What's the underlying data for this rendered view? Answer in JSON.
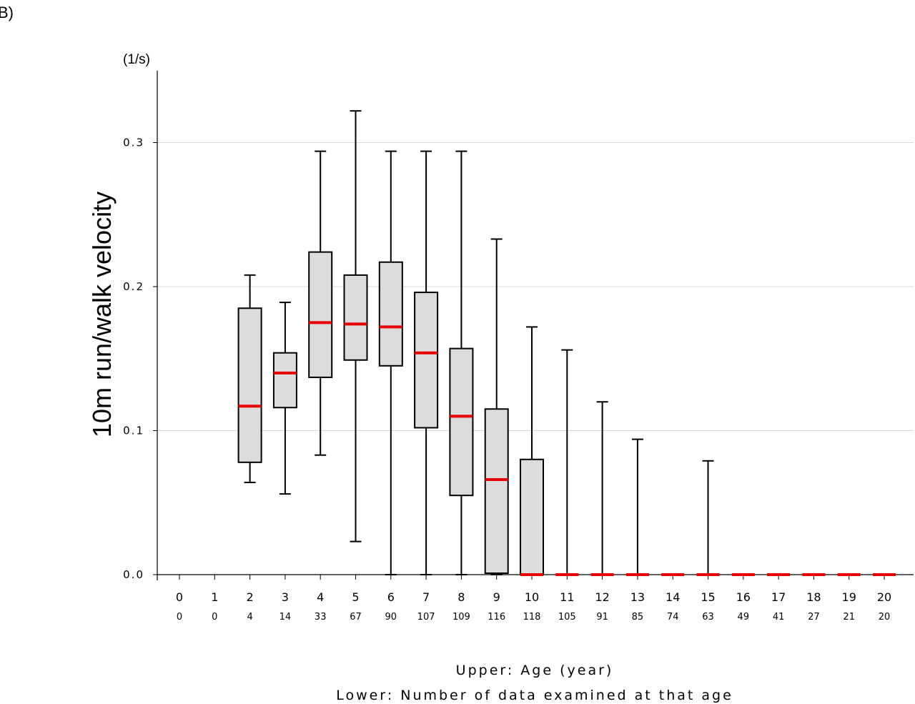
{
  "panel_label": "B)",
  "chart_data": {
    "type": "box",
    "unit": "(1/s)",
    "ylabel": "10m run/walk velocity",
    "xlabel_upper": "Upper: Age (year)",
    "xlabel_lower": "Lower: Number of data examined at that age",
    "ylim": [
      0,
      0.35
    ],
    "yticks": [
      {
        "value": 0.0,
        "label": "0.0"
      },
      {
        "value": 0.1,
        "label": "0.1"
      },
      {
        "value": 0.2,
        "label": "0.2"
      },
      {
        "value": 0.3,
        "label": "0.3"
      }
    ],
    "grid": "horizontal",
    "colors": {
      "box_fill": "#dcdcdc",
      "box_stroke": "#000000",
      "median": "#e60000",
      "grid": "#d9d9d9"
    },
    "categories": [
      {
        "age": "0",
        "n": "0",
        "box": null
      },
      {
        "age": "1",
        "n": "0",
        "box": null
      },
      {
        "age": "2",
        "n": "4",
        "box": {
          "min": 0.064,
          "q1": 0.078,
          "median": 0.117,
          "q3": 0.185,
          "max": 0.208
        }
      },
      {
        "age": "3",
        "n": "14",
        "box": {
          "min": 0.056,
          "q1": 0.116,
          "median": 0.14,
          "q3": 0.154,
          "max": 0.189
        }
      },
      {
        "age": "4",
        "n": "33",
        "box": {
          "min": 0.083,
          "q1": 0.137,
          "median": 0.175,
          "q3": 0.224,
          "max": 0.294
        }
      },
      {
        "age": "5",
        "n": "67",
        "box": {
          "min": 0.023,
          "q1": 0.149,
          "median": 0.174,
          "q3": 0.208,
          "max": 0.322
        }
      },
      {
        "age": "6",
        "n": "90",
        "box": {
          "min": 0.0,
          "q1": 0.145,
          "median": 0.172,
          "q3": 0.217,
          "max": 0.294
        }
      },
      {
        "age": "7",
        "n": "107",
        "box": {
          "min": 0.0,
          "q1": 0.102,
          "median": 0.154,
          "q3": 0.196,
          "max": 0.294
        }
      },
      {
        "age": "8",
        "n": "109",
        "box": {
          "min": 0.0,
          "q1": 0.055,
          "median": 0.11,
          "q3": 0.157,
          "max": 0.294
        }
      },
      {
        "age": "9",
        "n": "116",
        "box": {
          "min": 0.0,
          "q1": 0.001,
          "median": 0.066,
          "q3": 0.115,
          "max": 0.233
        }
      },
      {
        "age": "10",
        "n": "118",
        "box": {
          "min": 0.0,
          "q1": 0.0,
          "median": 0.0,
          "q3": 0.08,
          "max": 0.172
        }
      },
      {
        "age": "11",
        "n": "105",
        "box": {
          "min": 0.0,
          "q1": 0.0,
          "median": 0.0,
          "q3": 0.0,
          "max": 0.156
        }
      },
      {
        "age": "12",
        "n": "91",
        "box": {
          "min": 0.0,
          "q1": 0.0,
          "median": 0.0,
          "q3": 0.0,
          "max": 0.12
        }
      },
      {
        "age": "13",
        "n": "85",
        "box": {
          "min": 0.0,
          "q1": 0.0,
          "median": 0.0,
          "q3": 0.0,
          "max": 0.094
        }
      },
      {
        "age": "14",
        "n": "74",
        "box": {
          "min": 0.0,
          "q1": 0.0,
          "median": 0.0,
          "q3": 0.0,
          "max": 0.0
        }
      },
      {
        "age": "15",
        "n": "63",
        "box": {
          "min": 0.0,
          "q1": 0.0,
          "median": 0.0,
          "q3": 0.0,
          "max": 0.079
        }
      },
      {
        "age": "16",
        "n": "49",
        "box": {
          "min": 0.0,
          "q1": 0.0,
          "median": 0.0,
          "q3": 0.0,
          "max": 0.0
        }
      },
      {
        "age": "17",
        "n": "41",
        "box": {
          "min": 0.0,
          "q1": 0.0,
          "median": 0.0,
          "q3": 0.0,
          "max": 0.0
        }
      },
      {
        "age": "18",
        "n": "27",
        "box": {
          "min": 0.0,
          "q1": 0.0,
          "median": 0.0,
          "q3": 0.0,
          "max": 0.0
        }
      },
      {
        "age": "19",
        "n": "21",
        "box": {
          "min": 0.0,
          "q1": 0.0,
          "median": 0.0,
          "q3": 0.0,
          "max": 0.0
        }
      },
      {
        "age": "20",
        "n": "20",
        "box": {
          "min": 0.0,
          "q1": 0.0,
          "median": 0.0,
          "q3": 0.0,
          "max": 0.0
        }
      }
    ]
  }
}
